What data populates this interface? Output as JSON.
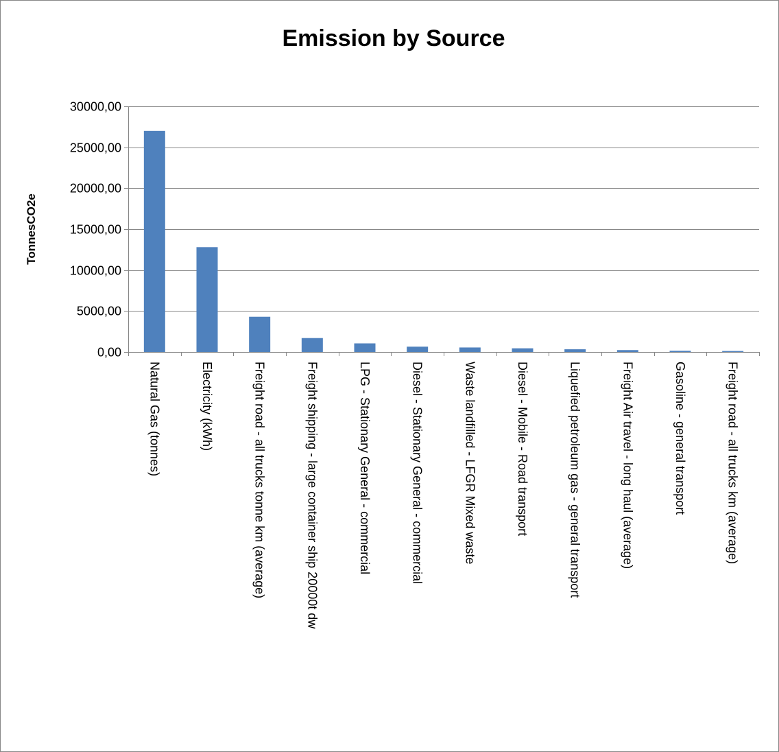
{
  "chart_data": {
    "type": "bar",
    "title": "Emission by Source",
    "xlabel": "",
    "ylabel": "TonnesCO2e",
    "ylim": [
      0,
      30000
    ],
    "yticks": [
      "0,00",
      "5000,00",
      "10000,00",
      "15000,00",
      "20000,00",
      "25000,00",
      "30000,00"
    ],
    "grid": true,
    "legend": "none",
    "bar_color": "#4f81bd",
    "categories": [
      "Natural Gas (tonnes)",
      "Electricity (kWh)",
      "Freight road - all trucks tonne km (average)",
      "Freight shipping - large container ship 20000t dw",
      "LPG - Stationary General - commercial",
      "Diesel - Stationary General - commercial",
      "Waste landfilled - LFGR Mixed waste",
      "Diesel - Mobile - Road transport",
      "Liquefied petroleum gas - general transport",
      "Freight Air travel - long haul (average)",
      "Gasoline - general transport",
      "Freight road - all trucks km (average)"
    ],
    "values": [
      27000,
      12800,
      4300,
      1700,
      1050,
      650,
      550,
      450,
      330,
      230,
      150,
      120
    ]
  }
}
